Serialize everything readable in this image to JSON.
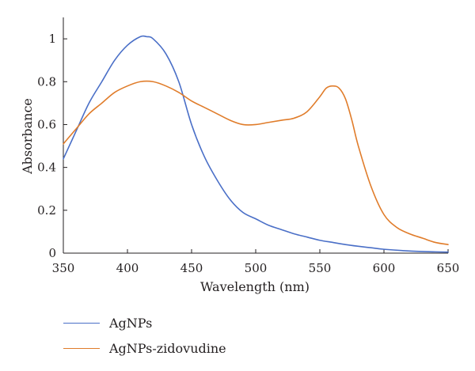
{
  "chart_data": {
    "type": "line",
    "title": "",
    "xlabel": "Wavelength (nm)",
    "ylabel": "Absorbance",
    "xlim": [
      350,
      650
    ],
    "ylim": [
      0,
      1.1
    ],
    "xticks": [
      "350",
      "400",
      "450",
      "500",
      "550",
      "600",
      "650"
    ],
    "xtick_values": [
      350,
      400,
      450,
      500,
      550,
      600,
      650
    ],
    "yticks": [
      "0",
      "0.2",
      "0.4",
      "0.6",
      "0.8",
      "1"
    ],
    "ytick_values": [
      0,
      0.2,
      0.4,
      0.6,
      0.8,
      1.0
    ],
    "grid": false,
    "legend_position": "bottom-left",
    "series": [
      {
        "name": "AgNPs",
        "color": "#4a6fc7",
        "x": [
          350,
          360,
          370,
          380,
          390,
          400,
          410,
          415,
          420,
          430,
          440,
          450,
          460,
          470,
          480,
          490,
          500,
          510,
          520,
          530,
          540,
          550,
          560,
          570,
          580,
          590,
          600,
          620,
          640,
          650
        ],
        "y": [
          0.44,
          0.57,
          0.7,
          0.8,
          0.9,
          0.97,
          1.01,
          1.01,
          1.0,
          0.93,
          0.8,
          0.6,
          0.45,
          0.34,
          0.25,
          0.19,
          0.16,
          0.13,
          0.11,
          0.09,
          0.075,
          0.06,
          0.05,
          0.04,
          0.032,
          0.025,
          0.018,
          0.01,
          0.006,
          0.005
        ]
      },
      {
        "name": "AgNPs-zidovudine",
        "color": "#e07c2a",
        "x": [
          350,
          360,
          370,
          380,
          390,
          400,
          410,
          420,
          430,
          440,
          450,
          460,
          470,
          480,
          490,
          500,
          510,
          520,
          530,
          540,
          550,
          555,
          560,
          565,
          570,
          575,
          580,
          590,
          600,
          610,
          620,
          630,
          640,
          650
        ],
        "y": [
          0.51,
          0.58,
          0.65,
          0.7,
          0.75,
          0.78,
          0.8,
          0.8,
          0.78,
          0.75,
          0.71,
          0.68,
          0.65,
          0.62,
          0.6,
          0.6,
          0.61,
          0.62,
          0.63,
          0.66,
          0.73,
          0.77,
          0.78,
          0.77,
          0.72,
          0.62,
          0.5,
          0.31,
          0.18,
          0.12,
          0.09,
          0.07,
          0.05,
          0.04
        ]
      }
    ]
  }
}
